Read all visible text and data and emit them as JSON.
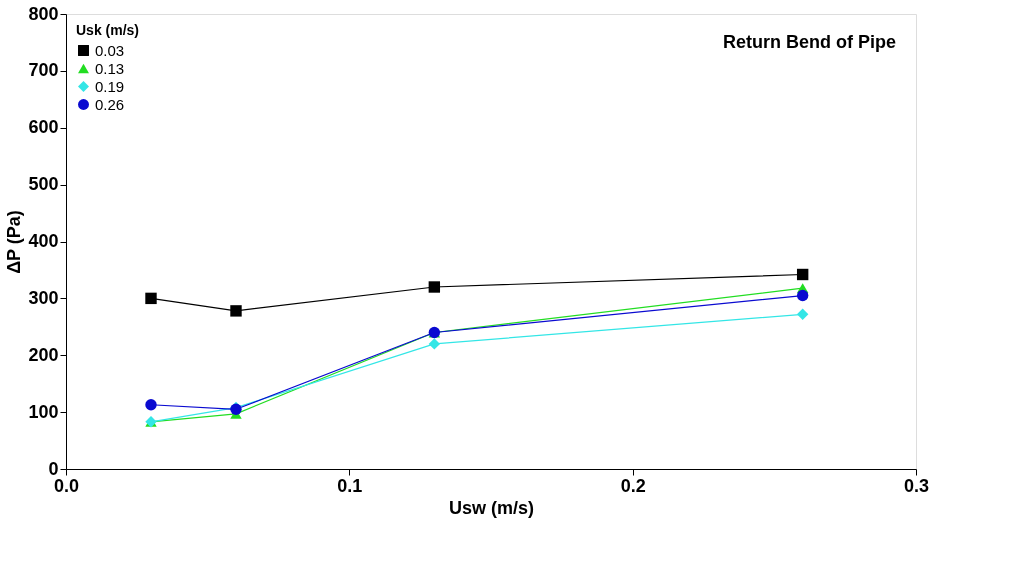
{
  "chart_data": {
    "type": "line",
    "title": "Return Bend of Pipe",
    "xlabel": "Usw (m/s)",
    "ylabel": "ΔP (Pa)",
    "legend_title": "Usk (m/s)",
    "x": [
      0.03,
      0.06,
      0.13,
      0.26
    ],
    "series": [
      {
        "name": "0.03",
        "color": "#000000",
        "marker": "square",
        "values": [
          300,
          278,
          320,
          342
        ]
      },
      {
        "name": "0.13",
        "color": "#22dd22",
        "marker": "triangle",
        "values": [
          83,
          97,
          240,
          318
        ]
      },
      {
        "name": "0.19",
        "color": "#33e6e6",
        "marker": "diamond",
        "values": [
          83,
          108,
          220,
          272
        ]
      },
      {
        "name": "0.26",
        "color": "#0a0ad0",
        "marker": "circle",
        "values": [
          113,
          105,
          240,
          305
        ]
      }
    ],
    "xlim": [
      0,
      0.3
    ],
    "xticks": [
      {
        "value": 0,
        "label": "0.0"
      },
      0.1,
      0.2,
      0.3
    ],
    "ylim": [
      0,
      800
    ],
    "yticks": [
      0,
      100,
      200,
      300,
      400,
      500,
      600,
      700,
      800
    ],
    "grid": false,
    "legend": "top left"
  }
}
